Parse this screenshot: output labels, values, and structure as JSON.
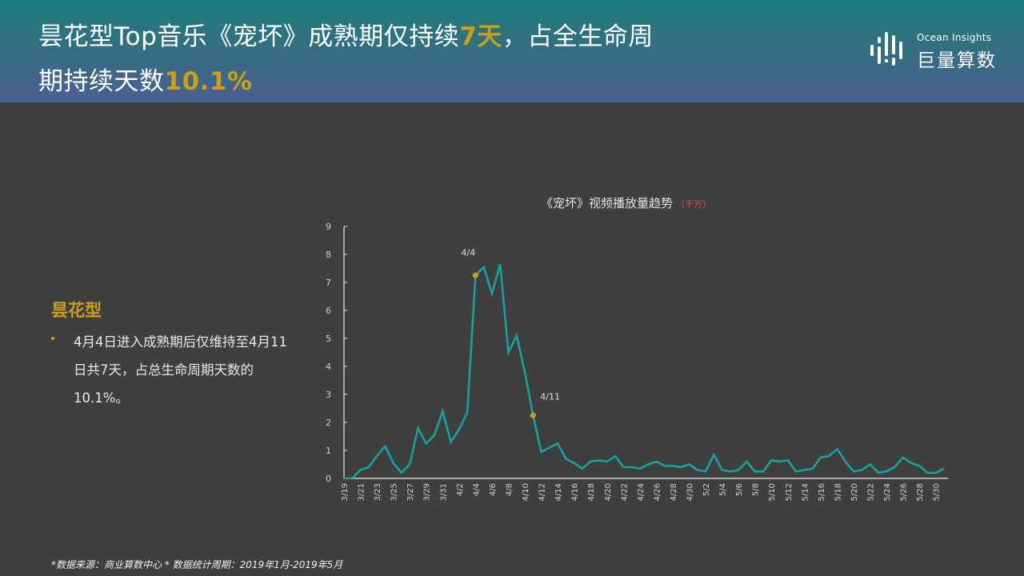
{
  "header": {
    "title_part1": "昙花型Top音乐《宠坏》成熟期仅持续",
    "title_highlight1": "7天",
    "title_part2": "，占全生命周",
    "title_part3": "期持续天数",
    "title_highlight2": "10.1%"
  },
  "logo": {
    "icon": "ocean-insights-logo-icon",
    "english": "Ocean Insights",
    "chinese": "巨量算数"
  },
  "sidebar": {
    "heading": "昙花型",
    "bullet": "4月4日进入成熟期后仅维持至4月11日共7天，占总生命周期天数的10.1%。"
  },
  "colors": {
    "accent_gold": "#c8a019",
    "line": "#16a3a0",
    "marker": "#c8a019",
    "unit_red": "#e0505a",
    "background": "#3f3f3f"
  },
  "chart_data": {
    "type": "line",
    "title": "《宠坏》视频播放量趋势",
    "unit": "（千万）",
    "xlabel": "",
    "ylabel": "",
    "ylim": [
      0,
      9
    ],
    "yticks": [
      0,
      1,
      2,
      3,
      4,
      5,
      6,
      7,
      8,
      9
    ],
    "grid": false,
    "legend": null,
    "xtick_labels": [
      "3/19",
      "3/21",
      "3/23",
      "3/25",
      "3/27",
      "3/29",
      "3/31",
      "4/2",
      "4/4",
      "4/6",
      "4/8",
      "4/10",
      "4/12",
      "4/14",
      "4/16",
      "4/18",
      "4/20",
      "4/22",
      "4/24",
      "4/26",
      "4/28",
      "4/30",
      "5/2",
      "5/4",
      "5/6",
      "5/8",
      "5/10",
      "5/12",
      "5/14",
      "5/16",
      "5/18",
      "5/20",
      "5/22",
      "5/24",
      "5/26",
      "5/28",
      "5/30"
    ],
    "x": [
      "3/19",
      "3/20",
      "3/21",
      "3/22",
      "3/23",
      "3/24",
      "3/25",
      "3/26",
      "3/27",
      "3/28",
      "3/29",
      "3/30",
      "3/31",
      "4/1",
      "4/2",
      "4/3",
      "4/4",
      "4/5",
      "4/6",
      "4/7",
      "4/8",
      "4/9",
      "4/10",
      "4/11",
      "4/12",
      "4/13",
      "4/14",
      "4/15",
      "4/16",
      "4/17",
      "4/18",
      "4/19",
      "4/20",
      "4/21",
      "4/22",
      "4/23",
      "4/24",
      "4/25",
      "4/26",
      "4/27",
      "4/28",
      "4/29",
      "4/30",
      "5/1",
      "5/2",
      "5/3",
      "5/4",
      "5/5",
      "5/6",
      "5/7",
      "5/8",
      "5/9",
      "5/10",
      "5/11",
      "5/12",
      "5/13",
      "5/14",
      "5/15",
      "5/16",
      "5/17",
      "5/18",
      "5/19",
      "5/20",
      "5/21",
      "5/22",
      "5/23",
      "5/24",
      "5/25",
      "5/26",
      "5/27",
      "5/28",
      "5/29",
      "5/30",
      "5/31"
    ],
    "series": [
      {
        "name": "播放量",
        "values": [
          0.0,
          0.0,
          0.3,
          0.4,
          0.8,
          1.15,
          0.55,
          0.2,
          0.5,
          1.8,
          1.25,
          1.55,
          2.4,
          1.3,
          1.75,
          2.35,
          7.25,
          7.55,
          6.6,
          7.65,
          4.5,
          5.1,
          3.8,
          2.25,
          0.95,
          1.1,
          1.25,
          0.7,
          0.55,
          0.35,
          0.6,
          0.65,
          0.6,
          0.8,
          0.4,
          0.4,
          0.35,
          0.5,
          0.6,
          0.45,
          0.45,
          0.4,
          0.5,
          0.3,
          0.25,
          0.85,
          0.3,
          0.25,
          0.3,
          0.6,
          0.25,
          0.25,
          0.65,
          0.6,
          0.65,
          0.25,
          0.3,
          0.35,
          0.75,
          0.8,
          1.05,
          0.6,
          0.25,
          0.3,
          0.5,
          0.2,
          0.25,
          0.4,
          0.75,
          0.55,
          0.45,
          0.2,
          0.2,
          0.35
        ]
      }
    ],
    "annotations": [
      {
        "label": "4/4",
        "x": "4/4",
        "y": 7.25
      },
      {
        "label": "4/11",
        "x": "4/11",
        "y": 2.25
      }
    ]
  },
  "footnote": "*数据来源：商业算数中心 * 数据统计周期：2019年1月-2019年5月"
}
